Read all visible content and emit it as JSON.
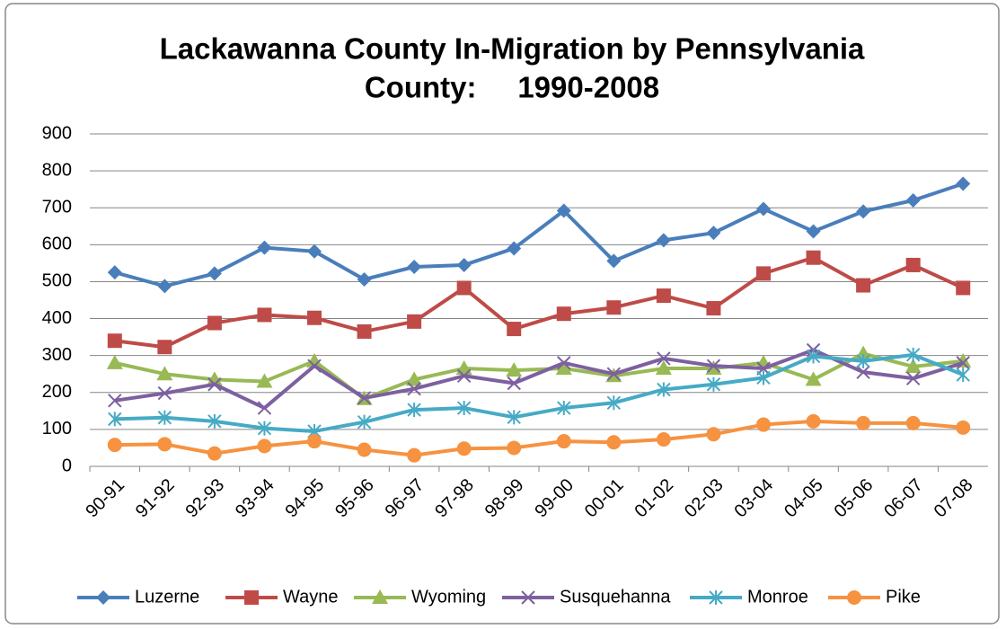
{
  "chart_data": {
    "type": "line",
    "title": [
      "Lackawanna County In-Migration by Pennsylvania",
      "County:     1990-2008"
    ],
    "categories": [
      "90-91",
      "91-92",
      "92-93",
      "93-94",
      "94-95",
      "95-96",
      "96-97",
      "97-98",
      "98-99",
      "99-00",
      "00-01",
      "01-02",
      "02-03",
      "03-04",
      "04-05",
      "05-06",
      "06-07",
      "07-08"
    ],
    "series": [
      {
        "name": "Luzerne",
        "color": "#4a7ebb",
        "marker": "diamond",
        "values": [
          525,
          488,
          522,
          592,
          582,
          506,
          540,
          545,
          590,
          692,
          556,
          612,
          632,
          697,
          636,
          690,
          720,
          765
        ]
      },
      {
        "name": "Wayne",
        "color": "#be4b48",
        "marker": "square",
        "values": [
          340,
          323,
          388,
          410,
          402,
          365,
          392,
          483,
          372,
          413,
          430,
          462,
          428,
          522,
          565,
          490,
          545,
          483
        ]
      },
      {
        "name": "Wyoming",
        "color": "#98b954",
        "marker": "triangle",
        "values": [
          280,
          250,
          235,
          230,
          285,
          183,
          235,
          265,
          260,
          265,
          245,
          265,
          265,
          280,
          235,
          305,
          270,
          285
        ]
      },
      {
        "name": "Susquehanna",
        "color": "#7d60a0",
        "marker": "x",
        "values": [
          178,
          198,
          222,
          158,
          272,
          185,
          210,
          245,
          225,
          280,
          250,
          292,
          272,
          265,
          315,
          255,
          238,
          280
        ]
      },
      {
        "name": "Monroe",
        "color": "#46aac5",
        "marker": "star",
        "values": [
          128,
          132,
          122,
          103,
          95,
          120,
          153,
          158,
          133,
          158,
          172,
          208,
          222,
          240,
          298,
          285,
          302,
          248
        ]
      },
      {
        "name": "Pike",
        "color": "#f69240",
        "marker": "circle",
        "values": [
          58,
          60,
          35,
          55,
          68,
          45,
          30,
          48,
          50,
          68,
          65,
          73,
          87,
          113,
          122,
          117,
          117,
          105
        ]
      }
    ],
    "ylim": [
      0,
      900
    ],
    "yticks": [
      0,
      100,
      200,
      300,
      400,
      500,
      600,
      700,
      800,
      900
    ],
    "grid": true,
    "legend": "bottom"
  }
}
